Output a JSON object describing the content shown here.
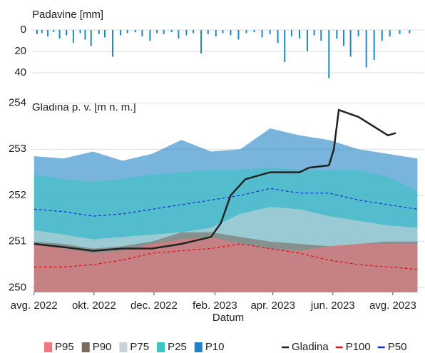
{
  "chart_data": [
    {
      "type": "bar",
      "title": "Padavine [mm]",
      "color": "#1a8ac4",
      "reverse": true,
      "grid": true,
      "xlim": [
        -2,
        397
      ],
      "ylim": [
        0,
        50
      ],
      "yticks": [
        0,
        20,
        40
      ],
      "x": [
        3,
        8,
        14,
        20,
        26,
        33,
        40,
        47,
        52,
        58,
        66,
        72,
        80,
        88,
        95,
        103,
        110,
        118,
        125,
        132,
        140,
        147,
        155,
        162,
        170,
        177,
        185,
        192,
        200,
        208,
        216,
        224,
        232,
        240,
        248,
        255,
        262,
        270,
        278,
        285,
        292,
        300,
        308,
        315,
        322,
        330,
        338,
        346,
        354,
        362,
        372,
        382
      ],
      "values": [
        4,
        3,
        6,
        2,
        8,
        5,
        12,
        3,
        9,
        15,
        4,
        7,
        25,
        5,
        3,
        2,
        6,
        10,
        3,
        4,
        2,
        8,
        5,
        3,
        22,
        4,
        6,
        3,
        5,
        9,
        3,
        2,
        7,
        4,
        12,
        30,
        6,
        8,
        20,
        5,
        10,
        45,
        8,
        15,
        25,
        6,
        35,
        28,
        10,
        6,
        4,
        3
      ]
    },
    {
      "type": "area",
      "title": "Gladina p. v. [m n. m.]",
      "xlabel": "Datum",
      "grid": true,
      "xlim": [
        -2,
        397
      ],
      "ylim": [
        249.9,
        254.1
      ],
      "yticks": [
        250,
        251,
        252,
        253,
        254
      ],
      "xticks": [
        {
          "value": 0,
          "label": "avg. 2022"
        },
        {
          "value": 61,
          "label": "okt. 2022"
        },
        {
          "value": 122,
          "label": "dec. 2022"
        },
        {
          "value": 184,
          "label": "feb. 2023"
        },
        {
          "value": 243,
          "label": "apr. 2023"
        },
        {
          "value": 304,
          "label": "jun. 2023"
        },
        {
          "value": 365,
          "label": "avg. 2023"
        }
      ],
      "x": [
        0,
        30,
        60,
        90,
        120,
        150,
        180,
        210,
        240,
        270,
        300,
        330,
        360,
        390
      ],
      "series": [
        {
          "name": "P10",
          "color": "#1f82c4",
          "kind": "area",
          "values": [
            252.85,
            252.8,
            252.95,
            252.75,
            252.9,
            253.2,
            252.95,
            253.0,
            253.45,
            253.3,
            253.2,
            253.0,
            252.9,
            252.8
          ]
        },
        {
          "name": "P25",
          "color": "#3cc3c3",
          "kind": "area",
          "values": [
            252.45,
            252.35,
            252.3,
            252.35,
            252.45,
            252.5,
            252.55,
            252.55,
            252.6,
            252.55,
            252.55,
            252.55,
            252.4,
            252.1
          ]
        },
        {
          "name": "P75",
          "color": "#c9d3d9",
          "kind": "area",
          "values": [
            251.25,
            251.15,
            251.05,
            251.1,
            251.15,
            251.2,
            251.3,
            251.6,
            251.75,
            251.7,
            251.55,
            251.45,
            251.35,
            251.3
          ]
        },
        {
          "name": "P90",
          "color": "#7a6a60",
          "kind": "area",
          "values": [
            251.0,
            250.95,
            250.85,
            250.9,
            251.0,
            251.2,
            251.2,
            251.1,
            251.0,
            250.95,
            250.9,
            250.95,
            251.0,
            251.0
          ]
        },
        {
          "name": "P95",
          "color": "#f2777d",
          "kind": "area",
          "values": [
            250.95,
            250.85,
            250.75,
            250.8,
            250.95,
            251.05,
            251.1,
            250.95,
            250.85,
            250.8,
            250.9,
            250.95,
            250.95,
            250.95
          ]
        },
        {
          "name": "P100",
          "color": "#e01010",
          "kind": "dashed",
          "values": [
            250.45,
            250.45,
            250.5,
            250.6,
            250.75,
            250.8,
            250.85,
            250.95,
            250.85,
            250.75,
            250.6,
            250.5,
            250.45,
            250.4
          ]
        },
        {
          "name": "P50",
          "color": "#1030d0",
          "kind": "dashed",
          "values": [
            251.7,
            251.65,
            251.55,
            251.6,
            251.7,
            251.8,
            251.9,
            252.0,
            252.15,
            252.05,
            252.05,
            251.9,
            251.8,
            251.7
          ]
        },
        {
          "name": "Gladina",
          "color": "#222222",
          "kind": "line",
          "x": [
            0,
            30,
            60,
            90,
            120,
            150,
            180,
            190,
            200,
            215,
            240,
            270,
            280,
            300,
            305,
            310,
            330,
            360,
            368
          ],
          "values": [
            250.95,
            250.88,
            250.8,
            250.85,
            250.85,
            250.95,
            251.1,
            251.4,
            252.0,
            252.35,
            252.5,
            252.5,
            252.6,
            252.65,
            253.0,
            253.85,
            253.7,
            253.3,
            253.35
          ]
        }
      ]
    }
  ]
}
